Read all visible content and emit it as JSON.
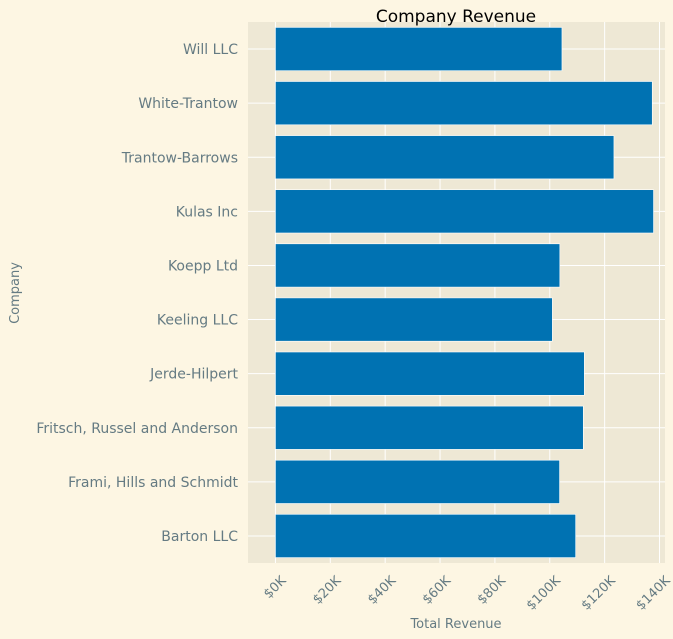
{
  "chart_data": {
    "type": "bar",
    "orientation": "horizontal",
    "title": "Company Revenue",
    "xlabel": "Total Revenue",
    "ylabel": "Company",
    "categories": [
      "Will LLC",
      "White-Trantow",
      "Trantow-Barrows",
      "Kulas Inc",
      "Koepp Ltd",
      "Keeling LLC",
      "Jerde-Hilpert",
      "Fritsch, Russel and Anderson",
      "Frami, Hills and Schmidt",
      "Barton LLC"
    ],
    "values": [
      104437,
      137351,
      123382,
      137817,
      103660,
      100934,
      112591,
      112214,
      103569,
      109438
    ],
    "xlim": [
      -10000,
      142000
    ],
    "xticks": [
      0,
      20000,
      40000,
      60000,
      80000,
      100000,
      120000,
      140000
    ],
    "xtick_labels": [
      "$0K",
      "$20K",
      "$40K",
      "$60K",
      "$80K",
      "$100K",
      "$120K",
      "$140K"
    ],
    "grid": true,
    "colors": {
      "bar": "#0072b2",
      "plot_background": "#eee8d5",
      "figure_background": "#fdf6e3",
      "grid": "#ffffff",
      "text": "#657b83"
    }
  }
}
